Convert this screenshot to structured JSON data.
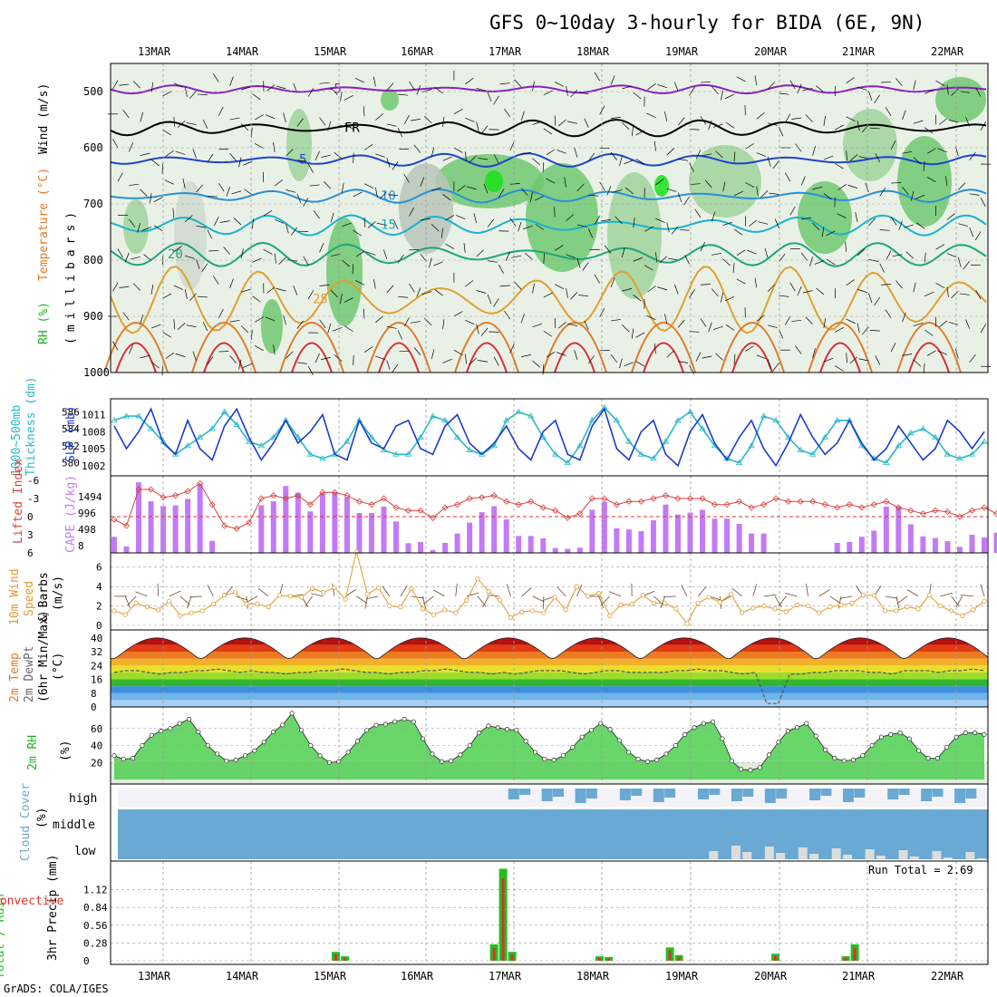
{
  "title": "GFS 0~10day 3-hourly for BIDA (6E, 9N)",
  "credit": "GrADS: COLA/IGES",
  "colors": {
    "grid": "#9a9a9a",
    "rh": "#1fb51f",
    "cloud": "#6aa9d4",
    "cape": "#c37af7",
    "lifted": "#d9413c",
    "slp": "#1a3ccf",
    "thick": "#2ab8c7",
    "wind": "#e09a2b",
    "precip_total": "#21c021",
    "precip_conv": "#e03030"
  },
  "chart_data": {
    "type": "meteogram",
    "x_axis": {
      "dates": [
        "13MAR",
        "14MAR",
        "15MAR",
        "16MAR",
        "17MAR",
        "18MAR",
        "19MAR",
        "20MAR",
        "21MAR",
        "22MAR"
      ],
      "steps_per_day": 8
    },
    "panels": [
      {
        "id": "upper_air",
        "type": "contour",
        "ylabel_parts": [
          "RH (%)",
          "Temperature (°C)",
          "Wind (m/s)",
          "(millibars)"
        ],
        "ylim": [
          1000,
          450
        ],
        "yticks": [
          500,
          600,
          700,
          800,
          900,
          1000
        ],
        "temp_isotherms": [
          {
            "value": -5,
            "label": "-5",
            "color": "#8b1fbf",
            "base": 496,
            "amp": 5
          },
          {
            "value": 0,
            "label": "FR",
            "color": "#000000",
            "base": 565,
            "amp": 10
          },
          {
            "value": 5,
            "label": "5",
            "color": "#1f44cc",
            "base": 622,
            "amp": 8
          },
          {
            "value": 10,
            "label": "10",
            "color": "#2a90d6",
            "base": 686,
            "amp": 8
          },
          {
            "value": 15,
            "label": "15",
            "color": "#19b3cc",
            "base": 738,
            "amp": 12
          },
          {
            "value": 20,
            "label": "20",
            "color": "#1da67a",
            "base": 790,
            "amp": 14
          },
          {
            "value": 25,
            "label": "25",
            "color": "#e0a030",
            "base": 870,
            "amp": 40
          }
        ],
        "rh_labels": [
          "50",
          "50",
          "50",
          "50",
          "70"
        ]
      },
      {
        "id": "pressure",
        "type": "line",
        "ylabel_left": "1000~500mb Thickness (dm)",
        "ylabel_right": "SLP (mb)",
        "thickness_ticks": [
          586,
          584,
          582,
          580
        ],
        "slp_ticks": [
          1011,
          1008,
          1005,
          1002
        ],
        "series": [
          {
            "name": "SLP (mb)",
            "color": "#1a3ccf",
            "values": [
              1009,
              1005,
              1008,
              1012,
              1006,
              1004,
              1010,
              1005,
              1003,
              1009,
              1012,
              1007,
              1003,
              1006,
              1010,
              1006,
              1008,
              1011,
              1004,
              1003,
              1010,
              1006,
              1005,
              1009,
              1010,
              1005,
              1004,
              1009,
              1011,
              1006,
              1004,
              1006,
              1009,
              1005,
              1003,
              1008,
              1010,
              1004,
              1003,
              1009,
              1012,
              1005,
              1003,
              1008,
              1010,
              1004,
              1002,
              1008,
              1011,
              1006,
              1003,
              1007,
              1010,
              1005,
              1002,
              1006,
              1011,
              1007,
              1004,
              1006,
              1010,
              1006,
              1003,
              1005,
              1009,
              1006,
              1003,
              1005,
              1010,
              1008,
              1005,
              1008
            ]
          },
          {
            "name": "Thickness (dm)",
            "color": "#2ab8c7",
            "values": [
              585,
              585.5,
              585.5,
              584,
              582.5,
              581,
              582,
              583,
              584,
              586,
              584.5,
              582.5,
              582,
              583,
              585,
              583,
              581,
              580.5,
              581,
              582.5,
              585,
              583,
              581.5,
              581,
              581,
              583,
              585.5,
              585,
              583,
              581.5,
              581,
              582,
              585,
              586,
              585.5,
              583,
              581,
              580,
              582,
              585,
              586.5,
              585,
              582.5,
              581,
              580.5,
              582.5,
              585,
              586,
              584,
              582,
              580.5,
              580,
              582,
              585.5,
              585,
              583,
              581.5,
              581,
              583,
              585,
              585,
              582,
              580.5,
              580,
              582,
              583.5,
              584,
              583,
              581,
              580.5,
              581,
              582.5
            ]
          }
        ]
      },
      {
        "id": "convection",
        "type": "bar+line",
        "ylabel_left": "Lifted Index",
        "ylabel_right": "CAPE (J/kg)",
        "li_ticks": [
          "-6",
          "-3",
          "0",
          "3",
          "6"
        ],
        "cape_ticks": [
          "1494",
          "996",
          "498",
          "8"
        ],
        "cape": [
          400,
          160,
          1750,
          1280,
          1160,
          1180,
          1340,
          1690,
          300,
          0,
          0,
          10,
          1180,
          1280,
          1660,
          1490,
          1030,
          1480,
          1500,
          1380,
          990,
          990,
          1150,
          780,
          240,
          270,
          70,
          250,
          480,
          750,
          1010,
          1160,
          830,
          420,
          420,
          360,
          120,
          100,
          130,
          1070,
          1270,
          610,
          580,
          540,
          810,
          1200,
          950,
          1000,
          1070,
          850,
          850,
          720,
          480,
          480,
          0,
          0,
          0,
          0,
          0,
          250,
          270,
          400,
          550,
          1150,
          1150,
          710,
          410,
          370,
          290,
          150,
          450,
          380,
          500,
          430
        ],
        "lifted_index": [
          0.5,
          1.5,
          -4.5,
          -4.5,
          -3.2,
          -3.5,
          -4.2,
          -5.5,
          -2,
          1.5,
          2,
          1,
          -3,
          -3.5,
          -3,
          -3.5,
          -2,
          -4,
          -4,
          -3.5,
          -2.5,
          -2,
          -3,
          -1.5,
          -1,
          -1,
          0.2,
          -1.5,
          -2,
          -3,
          -3.2,
          -3.5,
          -2.5,
          -2,
          -2.5,
          -1.5,
          -1,
          0.2,
          -0.5,
          -3,
          -3,
          -2,
          -2.5,
          -2.5,
          -3,
          -3.5,
          -3,
          -3,
          -3,
          -2,
          -2,
          -2.5,
          -1.5,
          -2,
          -3,
          -2.5,
          -2.5,
          -2.5,
          -2,
          -1.5,
          -2,
          -1.5,
          -2,
          -2.5,
          -1.5,
          -1,
          -0.5,
          -1,
          -0.8,
          0,
          -1,
          -1.5,
          -0.5,
          0.5
        ]
      },
      {
        "id": "wind10m",
        "type": "line",
        "ylabel": [
          "10m Wind",
          "Speed",
          "& Barbs",
          "(m/s)"
        ],
        "yticks": [
          0,
          2,
          4,
          6
        ],
        "values": [
          1.5,
          1.1,
          2.3,
          1.9,
          1.6,
          2.5,
          1,
          1.3,
          1.5,
          2.2,
          3.1,
          3.4,
          2.2,
          2.2,
          1.9,
          3.1,
          3,
          2.9,
          3.8,
          3.4,
          3.9,
          2.7,
          7.6,
          3.2,
          3.9,
          2,
          1.9,
          3.8,
          1.7,
          1.1,
          1.6,
          1.3,
          2.6,
          4.8,
          3.5,
          2.6,
          0.8,
          1.4,
          1.5,
          1.3,
          2.9,
          1.6,
          4,
          3,
          3.3,
          1,
          2.1,
          2.2,
          3.1,
          2.3,
          2.3,
          1.7,
          0.2,
          2.3,
          2.9,
          2.4,
          3.2,
          1.3,
          1.8,
          2,
          1.7,
          1.4,
          2.1,
          2,
          1.3,
          1.9,
          2.1,
          2.3,
          3.1,
          3.1,
          1.5,
          1.5,
          1.9,
          1.7,
          3.1,
          2,
          1.5,
          1,
          1.6,
          2.5
        ]
      },
      {
        "id": "temp2m",
        "type": "area",
        "ylabel": [
          "2m Temp",
          "2m DewPt",
          "(6hr Min/Max)",
          "(°C)"
        ],
        "yticks": [
          40,
          32,
          24,
          16,
          8,
          0
        ],
        "temp_ticks_labels": [
          "40",
          "32",
          "24",
          "16",
          "8",
          "0"
        ],
        "days": [
          {
            "max": 40,
            "min": 28
          },
          {
            "max": 40,
            "min": 28
          },
          {
            "max": 40,
            "min": 28
          },
          {
            "max": 40,
            "min": 28
          },
          {
            "max": 40,
            "min": 28
          },
          {
            "max": 40,
            "min": 28
          },
          {
            "max": 40,
            "min": 28
          },
          {
            "max": 40,
            "min": 28
          },
          {
            "max": 40,
            "min": 28
          },
          {
            "max": 40,
            "min": 28
          }
        ],
        "dewpoint": [
          20,
          21,
          21,
          20,
          19,
          20,
          20,
          21,
          21,
          22,
          21,
          20,
          21,
          20,
          20,
          19,
          20,
          20,
          21,
          21,
          22,
          21,
          20,
          20,
          19,
          20,
          20,
          21,
          21,
          22,
          21,
          20,
          20,
          19,
          20,
          19,
          20,
          21,
          21,
          21,
          20,
          19,
          20,
          21,
          21,
          20,
          20,
          20,
          20,
          21,
          21,
          22,
          21,
          21,
          20,
          19,
          20,
          2,
          2,
          19,
          19,
          20,
          20,
          21,
          21,
          21,
          20,
          20,
          19,
          21,
          21,
          21,
          20,
          21,
          21,
          22,
          21
        ]
      },
      {
        "id": "rh2m",
        "type": "area",
        "ylabel": [
          "2m RH",
          "(%)"
        ],
        "yticks": [
          20,
          40,
          60
        ],
        "values": [
          28,
          24,
          25,
          40,
          52,
          57,
          60,
          66,
          71,
          56,
          40,
          30,
          22,
          23,
          28,
          34,
          44,
          56,
          64,
          78,
          58,
          40,
          28,
          20,
          21,
          32,
          45,
          58,
          64,
          65,
          68,
          71,
          68,
          48,
          30,
          21,
          22,
          29,
          40,
          55,
          63,
          61,
          59,
          58,
          45,
          32,
          24,
          23,
          28,
          38,
          50,
          58,
          66,
          59,
          46,
          32,
          24,
          21,
          23,
          30,
          40,
          53,
          61,
          66,
          68,
          48,
          22,
          12,
          11,
          14,
          29,
          44,
          57,
          61,
          66,
          51,
          35,
          25,
          22,
          23,
          28,
          40,
          50,
          53,
          55,
          48,
          34,
          25,
          25,
          38,
          50,
          55,
          55,
          53
        ]
      },
      {
        "id": "cloud",
        "type": "bar",
        "ylabel": [
          "Cloud Cover",
          "(%)"
        ],
        "rows": [
          "high",
          "middle",
          "low"
        ]
      },
      {
        "id": "precip",
        "type": "bar",
        "ylabel": [
          "Total / Rain",
          "3hr Precip (mm)",
          "Convective"
        ],
        "yticks": [
          "0",
          "0.28",
          "0.56",
          "0.84",
          "1.12"
        ],
        "run_total_label": "Run Total = 2.69",
        "run_total": 2.69,
        "bars": [
          {
            "day": 2.0,
            "step": 0,
            "total": 0.14,
            "conv": 0.1
          },
          {
            "day": 2.0,
            "step": 1,
            "total": 0.07,
            "conv": 0.05
          },
          {
            "day": 3.8,
            "step": 0,
            "total": 0.26,
            "conv": 0.2
          },
          {
            "day": 3.8,
            "step": 1,
            "total": 1.45,
            "conv": 1.3
          },
          {
            "day": 3.8,
            "step": 2,
            "total": 0.14,
            "conv": 0.1
          },
          {
            "day": 5.0,
            "step": 0,
            "total": 0.07,
            "conv": 0.05
          },
          {
            "day": 5.0,
            "step": 1,
            "total": 0.06,
            "conv": 0.04
          },
          {
            "day": 5.8,
            "step": 0,
            "total": 0.21,
            "conv": 0.16
          },
          {
            "day": 5.8,
            "step": 1,
            "total": 0.09,
            "conv": 0.06
          },
          {
            "day": 7.0,
            "step": 0,
            "total": 0.11,
            "conv": 0.08
          },
          {
            "day": 7.8,
            "step": 0,
            "total": 0.07,
            "conv": 0.05
          },
          {
            "day": 7.8,
            "step": 1,
            "total": 0.26,
            "conv": 0.2
          }
        ]
      }
    ]
  }
}
